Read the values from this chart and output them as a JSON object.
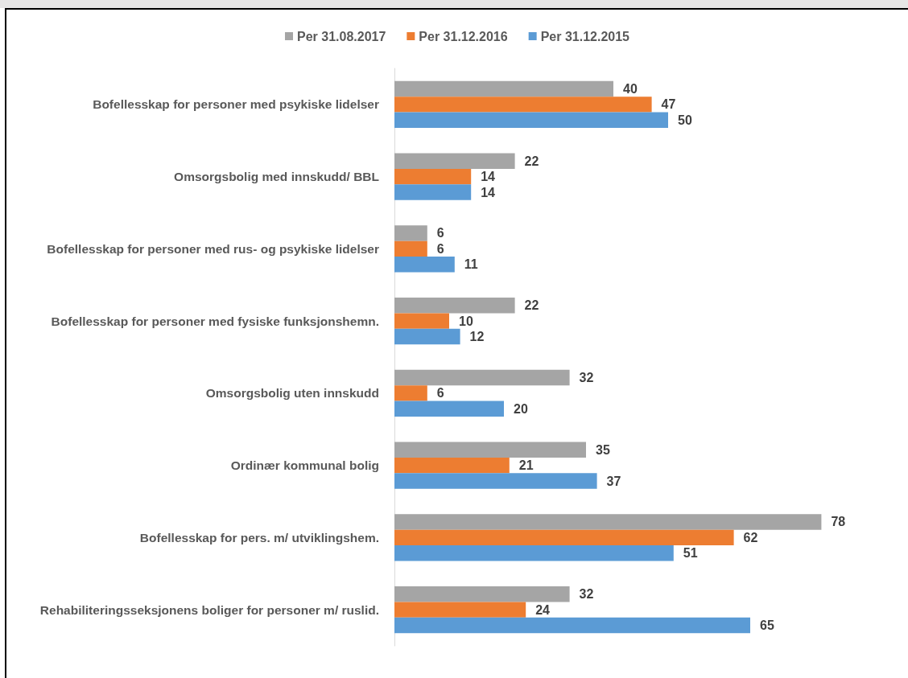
{
  "chart_data": {
    "type": "bar",
    "orientation": "horizontal",
    "categories": [
      "Bofellesskap for personer med psykiske lidelser",
      "Omsorgsbolig med innskudd/ BBL",
      "Bofellesskap for personer med rus- og psykiske lidelser",
      "Bofellesskap for personer med fysiske funksjonshemn.",
      "Omsorgsbolig uten innskudd",
      "Ordinær kommunal bolig",
      "Bofellesskap for pers. m/ utviklingshem.",
      "Rehabiliteringsseksjonens boliger for personer m/ ruslid."
    ],
    "series": [
      {
        "name": "Per 31.08.2017",
        "color": "#a5a5a5",
        "values": [
          40,
          22,
          6,
          22,
          32,
          35,
          78,
          32
        ]
      },
      {
        "name": "Per 31.12.2016",
        "color": "#ed7d31",
        "values": [
          47,
          14,
          6,
          10,
          6,
          21,
          62,
          24
        ]
      },
      {
        "name": "Per 31.12.2015",
        "color": "#5b9bd5",
        "values": [
          50,
          14,
          11,
          12,
          20,
          37,
          51,
          65
        ]
      }
    ],
    "data_labels": true,
    "legend": "top",
    "grid": false,
    "tick_labels": "y"
  }
}
